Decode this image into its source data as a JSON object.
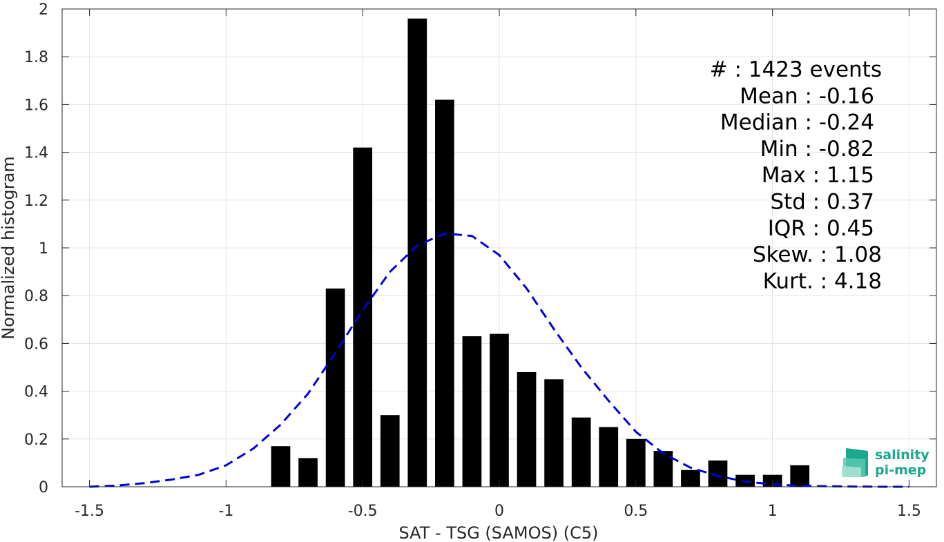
{
  "chart_data": {
    "type": "bar",
    "xlabel": "SAT - TSG (SAMOS) (C5)",
    "ylabel": "Normalized histogram",
    "xlim": [
      -1.6,
      1.6
    ],
    "ylim": [
      0,
      2
    ],
    "xticks": [
      -1.5,
      -1,
      -0.5,
      0,
      0.5,
      1,
      1.5
    ],
    "xtick_labels": [
      "-1.5",
      "-1",
      "-0.5",
      "0",
      "0.5",
      "1",
      "1.5"
    ],
    "yticks": [
      0,
      0.2,
      0.4,
      0.6,
      0.8,
      1,
      1.2,
      1.4,
      1.6,
      1.8,
      2
    ],
    "ytick_labels": [
      "0",
      "0.2",
      "0.4",
      "0.6",
      "0.8",
      "1",
      "1.2",
      "1.4",
      "1.6",
      "1.8",
      "2"
    ],
    "grid": true,
    "bar_width": 0.07,
    "bars": [
      {
        "x": -0.8,
        "y": 0.17
      },
      {
        "x": -0.7,
        "y": 0.12
      },
      {
        "x": -0.6,
        "y": 0.83
      },
      {
        "x": -0.5,
        "y": 1.42
      },
      {
        "x": -0.4,
        "y": 0.3
      },
      {
        "x": -0.3,
        "y": 1.96
      },
      {
        "x": -0.2,
        "y": 1.62
      },
      {
        "x": -0.1,
        "y": 0.63
      },
      {
        "x": 0.0,
        "y": 0.64
      },
      {
        "x": 0.1,
        "y": 0.48
      },
      {
        "x": 0.2,
        "y": 0.45
      },
      {
        "x": 0.3,
        "y": 0.29
      },
      {
        "x": 0.4,
        "y": 0.25
      },
      {
        "x": 0.5,
        "y": 0.2
      },
      {
        "x": 0.6,
        "y": 0.15
      },
      {
        "x": 0.7,
        "y": 0.07
      },
      {
        "x": 0.8,
        "y": 0.11
      },
      {
        "x": 0.9,
        "y": 0.05
      },
      {
        "x": 1.0,
        "y": 0.05
      },
      {
        "x": 1.1,
        "y": 0.09
      }
    ],
    "fit_curve": {
      "style": "dashed",
      "color": "#0000dd",
      "x": [
        -1.5,
        -1.4,
        -1.3,
        -1.2,
        -1.1,
        -1.0,
        -0.9,
        -0.8,
        -0.7,
        -0.6,
        -0.5,
        -0.4,
        -0.3,
        -0.2,
        -0.1,
        0.0,
        0.1,
        0.2,
        0.3,
        0.4,
        0.5,
        0.6,
        0.7,
        0.8,
        0.9,
        1.0,
        1.1,
        1.2,
        1.3,
        1.4,
        1.5
      ],
      "y": [
        0.0,
        0.005,
        0.015,
        0.03,
        0.05,
        0.09,
        0.16,
        0.26,
        0.39,
        0.56,
        0.74,
        0.9,
        1.01,
        1.06,
        1.05,
        0.97,
        0.83,
        0.66,
        0.5,
        0.36,
        0.23,
        0.14,
        0.08,
        0.045,
        0.022,
        0.01,
        0.004,
        0.002,
        0.001,
        0.0,
        0.0
      ]
    },
    "stats": [
      {
        "label": "#  ",
        "value": "1423 events",
        "text": "#  : 1423 events"
      },
      {
        "label": "Mean",
        "value": "-0.16",
        "text": "Mean : -0.16"
      },
      {
        "label": "Median",
        "value": "-0.24",
        "text": "Median : -0.24"
      },
      {
        "label": "Min",
        "value": "-0.82",
        "text": "Min : -0.82"
      },
      {
        "label": "Max",
        "value": "1.15",
        "text": "Max : 1.15"
      },
      {
        "label": "Std",
        "value": "0.37",
        "text": "Std : 0.37"
      },
      {
        "label": "IQR",
        "value": "0.45",
        "text": "IQR : 0.45"
      },
      {
        "label": "Skew.",
        "value": "1.08",
        "text": "Skew. : 1.08"
      },
      {
        "label": "Kurt.",
        "value": "4.18",
        "text": "Kurt. : 4.18"
      }
    ]
  },
  "logo": {
    "line1": "salinity",
    "line2": "pi-mep",
    "color": "#1aa98f"
  }
}
